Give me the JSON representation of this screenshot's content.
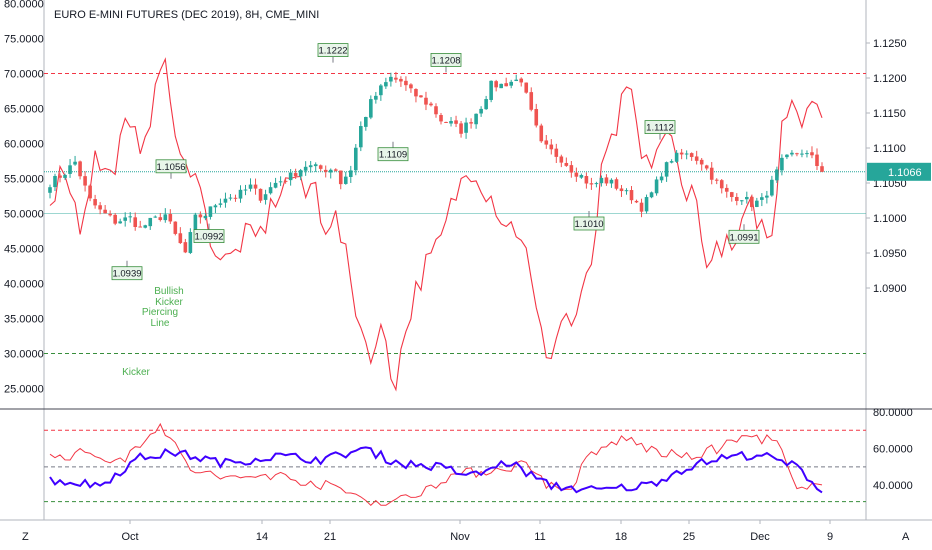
{
  "chart_data": {
    "type": "candlestick",
    "title": "EURO E-MINI FUTURES (DEC 2019), 8H, CME_MINI",
    "x_ticks": [
      "Oct",
      "14",
      "21",
      "Nov",
      "11",
      "18",
      "25",
      "Dec",
      "9"
    ],
    "price_axis": {
      "ylim": [
        1.0875,
        1.1275
      ],
      "ticks": [
        "1.1250",
        "1.1200",
        "1.1150",
        "1.1100",
        "1.1050",
        "1.1000",
        "1.0950",
        "1.0900"
      ],
      "last_price": "1.1066",
      "last_price_value": 1.1066
    },
    "rsi_left_axis": {
      "ylim": [
        21,
        81
      ],
      "ticks": [
        "80.0000",
        "75.0000",
        "70.0000",
        "65.0000",
        "60.0000",
        "55.0000",
        "50.0000",
        "45.0000",
        "40.0000",
        "35.0000",
        "30.0000",
        "25.0000"
      ],
      "levels": {
        "overbought": 70,
        "middle": 50,
        "oversold": 30
      }
    },
    "lower_panel_axis": {
      "ylim": [
        27,
        80
      ],
      "ticks": [
        "80.0000",
        "60.0000",
        "40.0000"
      ],
      "levels": {
        "upper": 70,
        "middle": 50,
        "lower": 31
      }
    },
    "annotations": [
      {
        "label": "1.0939",
        "value": 1.0939,
        "side": "below"
      },
      {
        "label": "1.1056",
        "value": 1.1056,
        "side": "above"
      },
      {
        "label": "1.0992",
        "value": 1.0992,
        "side": "below"
      },
      {
        "label": "1.1222",
        "value": 1.1222,
        "side": "above"
      },
      {
        "label": "1.1109",
        "value": 1.1109,
        "side": "below"
      },
      {
        "label": "1.1208",
        "value": 1.1208,
        "side": "above"
      },
      {
        "label": "1.1010",
        "value": 1.101,
        "side": "below"
      },
      {
        "label": "1.1112",
        "value": 1.1112,
        "side": "above"
      },
      {
        "label": "1.0991",
        "value": 1.0991,
        "side": "below"
      }
    ],
    "patterns": [
      {
        "lines": [
          "Bullish",
          "Kicker"
        ]
      },
      {
        "lines": [
          "Piercing",
          "Line"
        ]
      },
      {
        "lines": [
          "Kicker"
        ]
      }
    ],
    "colors": {
      "up": "#26a69a",
      "down": "#ef5350",
      "rsi": "#f23645",
      "blue_line": "#3f00ff",
      "last_price_bg": "#26a69a",
      "overbought": "#f23645",
      "oversold": "#388e3c",
      "midline": "#787b86"
    },
    "grid": false
  },
  "bottom_bar": {
    "left_button": "Z",
    "right_button": "A"
  }
}
